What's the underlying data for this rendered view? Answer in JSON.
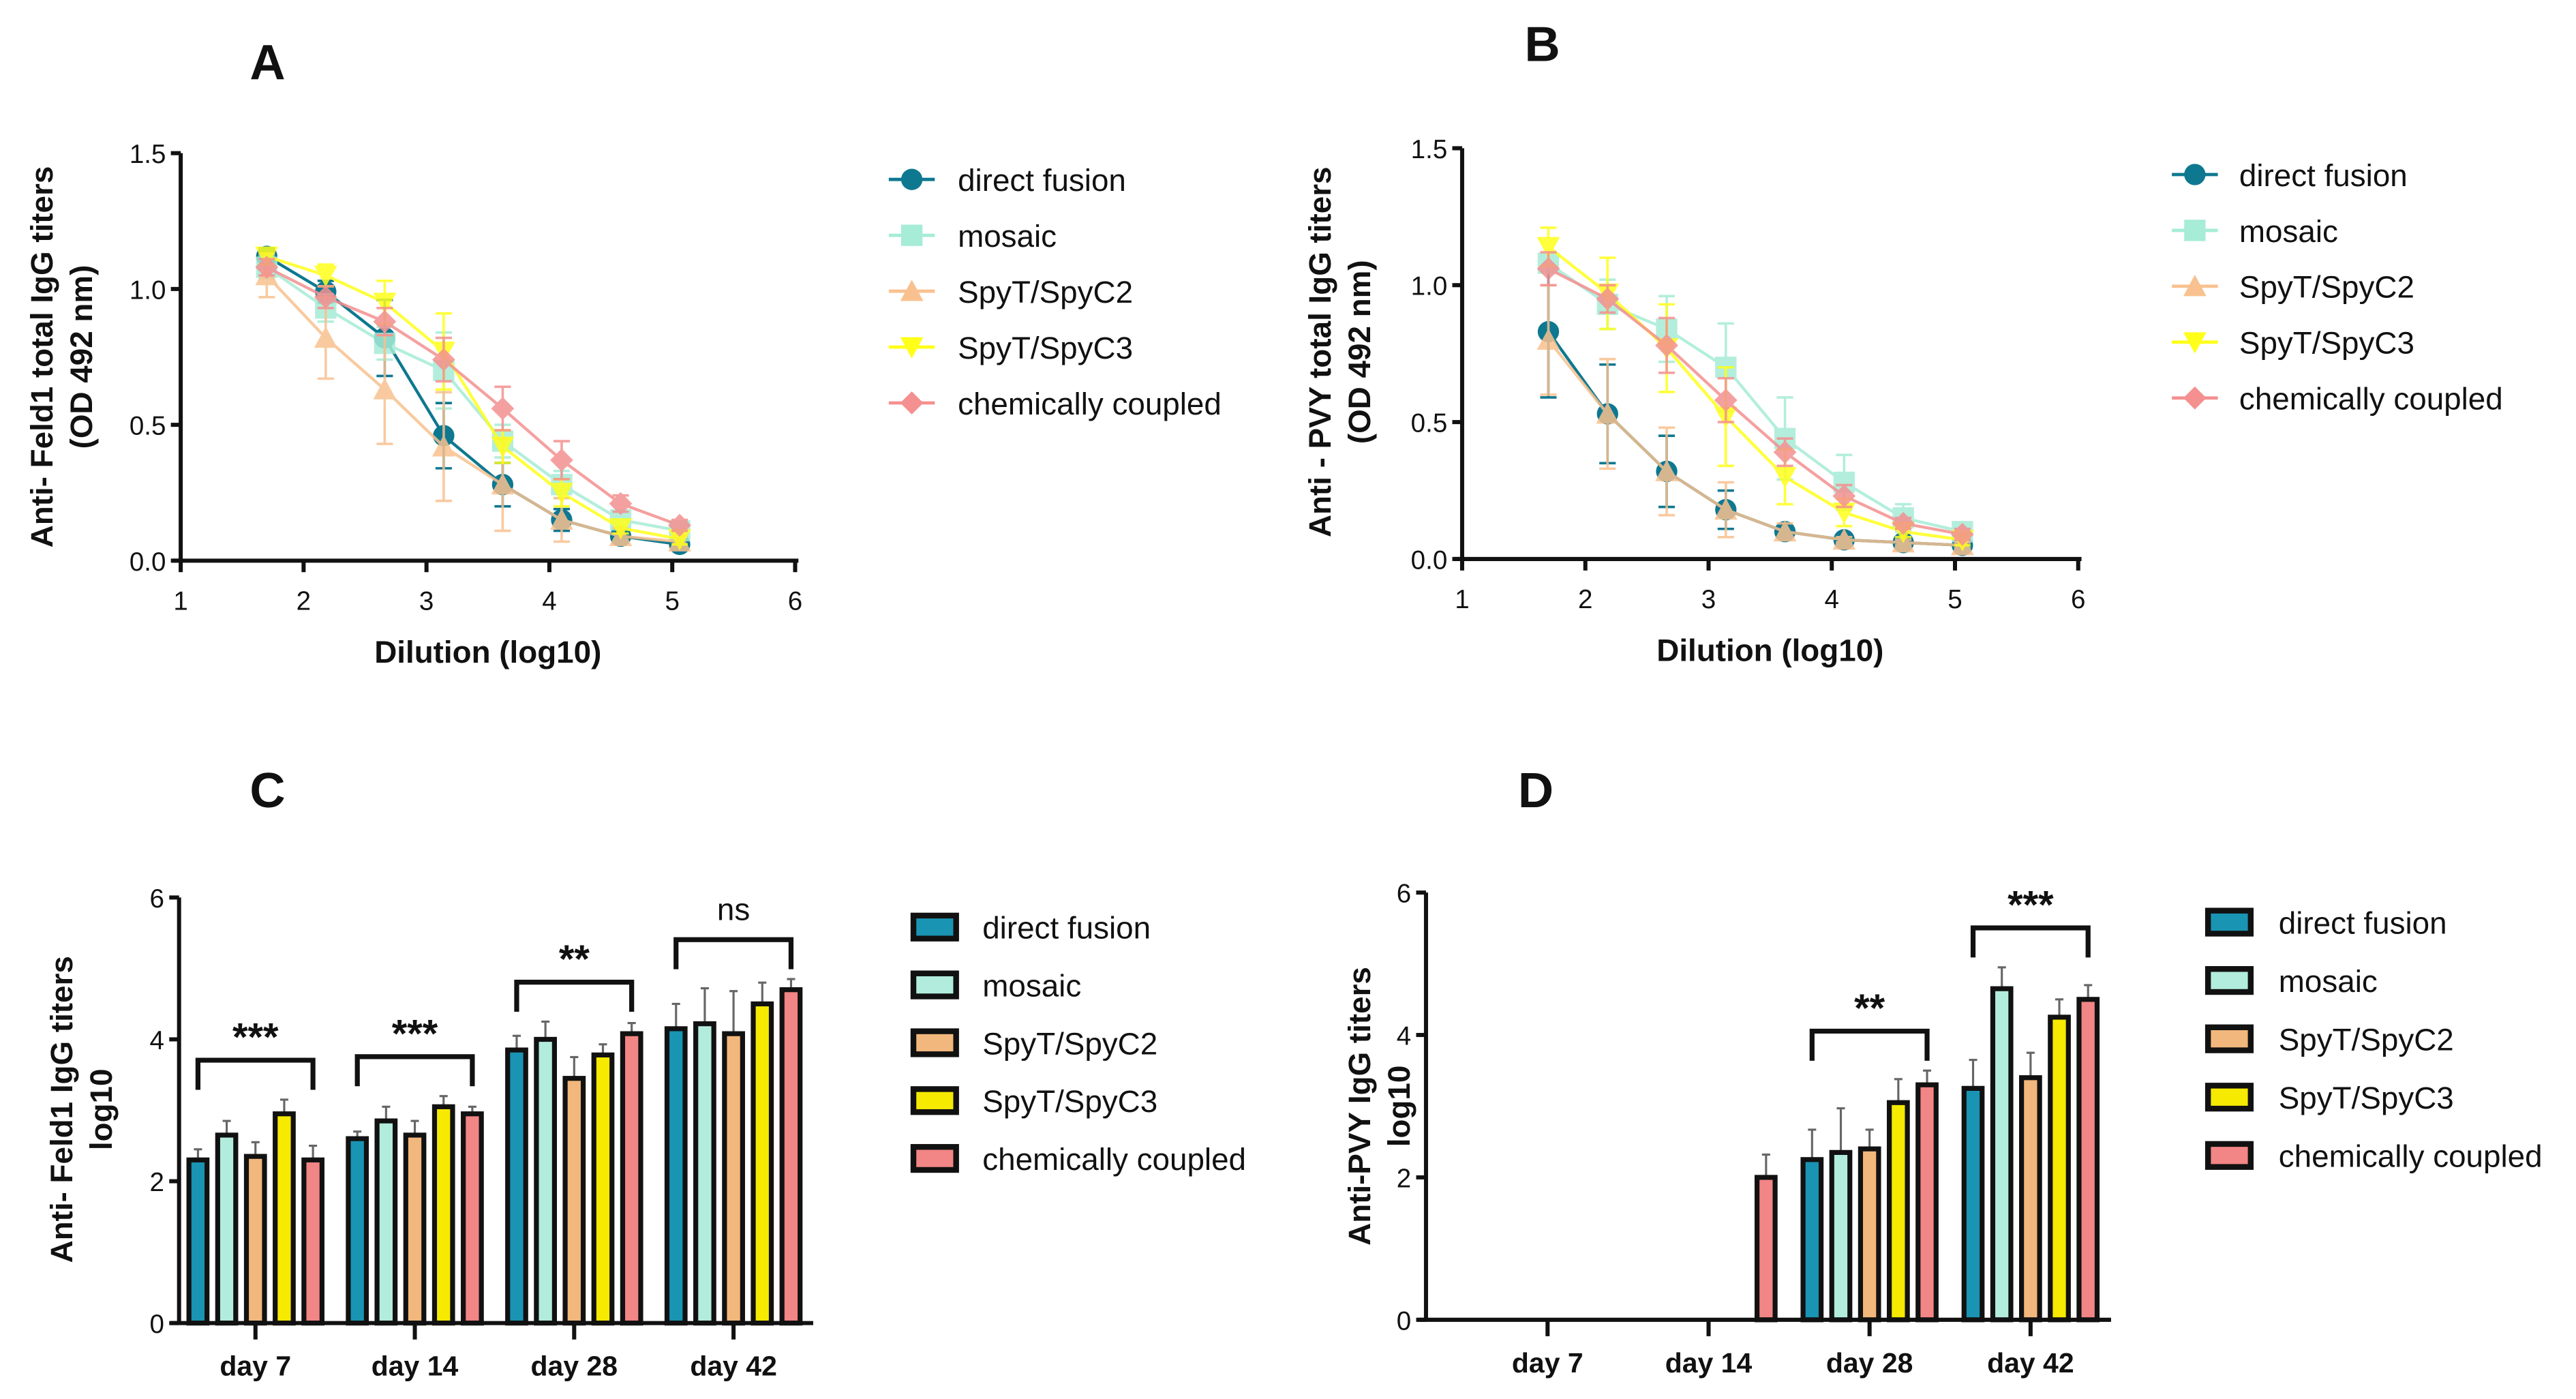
{
  "series_names": [
    "direct fusion",
    "mosaic",
    "SpyT/SpyC2",
    "SpyT/SpyC3",
    "chemically coupled"
  ],
  "colors": {
    "line": [
      "#0e7890",
      "#a6ecd6",
      "#f9c18f",
      "#ffff1a",
      "#f49090"
    ],
    "bar": [
      "#1a94b3",
      "#b2ecdc",
      "#f2b77c",
      "#f5ea00",
      "#f28585"
    ]
  },
  "chart_data": [
    {
      "panel": "A",
      "type": "line",
      "ylabel": [
        "Anti- Feld1 total IgG titers",
        "(OD 492 nm)"
      ],
      "xlabel": "Dilution (log10)",
      "xlim": [
        1,
        6
      ],
      "ylim": [
        0,
        1.5
      ],
      "xticks": [
        "1",
        "2",
        "3",
        "4",
        "5",
        "6"
      ],
      "yticks": [
        "0.0",
        "0.5",
        "1.0",
        "1.5"
      ],
      "x": [
        1.7,
        2.18,
        2.66,
        3.14,
        3.62,
        4.1,
        4.58,
        5.06
      ],
      "series": [
        {
          "name": "direct fusion",
          "values": [
            1.12,
            0.99,
            0.82,
            0.46,
            0.28,
            0.15,
            0.09,
            0.06
          ],
          "err": [
            0.03,
            0.04,
            0.14,
            0.12,
            0.08,
            0.04,
            0.02,
            0.02
          ]
        },
        {
          "name": "mosaic",
          "values": [
            1.08,
            0.93,
            0.8,
            0.7,
            0.44,
            0.28,
            0.15,
            0.11
          ],
          "err": [
            0.04,
            0.05,
            0.06,
            0.14,
            0.06,
            0.05,
            0.03,
            0.02
          ]
        },
        {
          "name": "SpyT/SpyC2",
          "values": [
            1.05,
            0.82,
            0.63,
            0.42,
            0.28,
            0.15,
            0.09,
            0.07
          ],
          "err": [
            0.08,
            0.15,
            0.2,
            0.2,
            0.17,
            0.08,
            0.03,
            0.02
          ]
        },
        {
          "name": "SpyT/SpyC3",
          "values": [
            1.12,
            1.05,
            0.95,
            0.77,
            0.42,
            0.25,
            0.12,
            0.08
          ],
          "err": [
            0.03,
            0.04,
            0.08,
            0.14,
            0.06,
            0.05,
            0.02,
            0.02
          ]
        },
        {
          "name": "chemically coupled",
          "values": [
            1.08,
            0.97,
            0.88,
            0.74,
            0.56,
            0.37,
            0.21,
            0.13
          ],
          "err": [
            0.03,
            0.04,
            0.05,
            0.08,
            0.08,
            0.07,
            0.03,
            0.02
          ]
        }
      ]
    },
    {
      "panel": "B",
      "type": "line",
      "ylabel": [
        "Anti - PVY total IgG titers",
        "(OD 492 nm)"
      ],
      "xlabel": "Dilution (log10)",
      "xlim": [
        1,
        6
      ],
      "ylim": [
        0,
        1.5
      ],
      "xticks": [
        "1",
        "2",
        "3",
        "4",
        "5",
        "6"
      ],
      "yticks": [
        "0.0",
        "0.5",
        "1.0",
        "1.5"
      ],
      "x": [
        1.7,
        2.18,
        2.66,
        3.14,
        3.62,
        4.1,
        4.58,
        5.06
      ],
      "series": [
        {
          "name": "direct fusion",
          "values": [
            0.83,
            0.53,
            0.32,
            0.18,
            0.1,
            0.07,
            0.06,
            0.05
          ],
          "err": [
            0.24,
            0.18,
            0.13,
            0.07,
            0.02,
            0.01,
            0.01,
            0.01
          ]
        },
        {
          "name": "mosaic",
          "values": [
            1.08,
            0.93,
            0.84,
            0.7,
            0.44,
            0.28,
            0.15,
            0.1
          ],
          "err": [
            0.03,
            0.09,
            0.12,
            0.16,
            0.15,
            0.1,
            0.05,
            0.02
          ]
        },
        {
          "name": "SpyT/SpyC2",
          "values": [
            0.8,
            0.53,
            0.32,
            0.18,
            0.1,
            0.07,
            0.06,
            0.05
          ],
          "err": [
            0.2,
            0.2,
            0.16,
            0.1,
            0.03,
            0.01,
            0.01,
            0.01
          ]
        },
        {
          "name": "SpyT/SpyC3",
          "values": [
            1.14,
            0.97,
            0.77,
            0.52,
            0.3,
            0.17,
            0.1,
            0.07
          ],
          "err": [
            0.07,
            0.13,
            0.16,
            0.18,
            0.1,
            0.05,
            0.02,
            0.02
          ]
        },
        {
          "name": "chemically coupled",
          "values": [
            1.06,
            0.95,
            0.78,
            0.58,
            0.39,
            0.23,
            0.13,
            0.09
          ],
          "err": [
            0.06,
            0.05,
            0.1,
            0.08,
            0.05,
            0.04,
            0.02,
            0.02
          ]
        }
      ]
    },
    {
      "panel": "C",
      "type": "bar",
      "ylabel": [
        "Anti- Feld1 IgG titers",
        "log10"
      ],
      "xlabel": "",
      "ylim": [
        0,
        6
      ],
      "yticks": [
        "0",
        "2",
        "4",
        "6"
      ],
      "categories": [
        "day 7",
        "day 14",
        "day 28",
        "day 42"
      ],
      "series": [
        {
          "name": "direct fusion",
          "values": [
            2.3,
            2.6,
            3.85,
            4.15
          ],
          "err": [
            0.15,
            0.1,
            0.2,
            0.35
          ]
        },
        {
          "name": "mosaic",
          "values": [
            2.65,
            2.85,
            4.0,
            4.22
          ],
          "err": [
            0.2,
            0.2,
            0.25,
            0.5
          ]
        },
        {
          "name": "SpyT/SpyC2",
          "values": [
            2.35,
            2.65,
            3.45,
            4.08
          ],
          "err": [
            0.2,
            0.2,
            0.3,
            0.6
          ]
        },
        {
          "name": "SpyT/SpyC3",
          "values": [
            2.95,
            3.05,
            3.78,
            4.5
          ],
          "err": [
            0.2,
            0.15,
            0.15,
            0.3
          ]
        },
        {
          "name": "chemically coupled",
          "values": [
            2.3,
            2.95,
            4.08,
            4.7
          ],
          "err": [
            0.2,
            0.1,
            0.15,
            0.15
          ]
        }
      ],
      "annotations": [
        {
          "category": "day 7",
          "text": "***"
        },
        {
          "category": "day 14",
          "text": "***"
        },
        {
          "category": "day 28",
          "text": "**"
        },
        {
          "category": "day 42",
          "text": "ns"
        }
      ]
    },
    {
      "panel": "D",
      "type": "bar",
      "ylabel": [
        "Anti-PVY IgG titers",
        "log10"
      ],
      "xlabel": "",
      "ylim": [
        0,
        6
      ],
      "yticks": [
        "0",
        "2",
        "4",
        "6"
      ],
      "categories": [
        "day 7",
        "day 14",
        "day 28",
        "day 42"
      ],
      "series": [
        {
          "name": "direct fusion",
          "values": [
            0,
            0,
            2.25,
            3.25
          ],
          "err": [
            0,
            0,
            0.42,
            0.4
          ]
        },
        {
          "name": "mosaic",
          "values": [
            0,
            0,
            2.35,
            4.65
          ],
          "err": [
            0,
            0,
            0.62,
            0.3
          ]
        },
        {
          "name": "SpyT/SpyC2",
          "values": [
            0,
            0,
            2.4,
            3.4
          ],
          "err": [
            0,
            0,
            0.27,
            0.35
          ]
        },
        {
          "name": "SpyT/SpyC3",
          "values": [
            0,
            0,
            3.05,
            4.25
          ],
          "err": [
            0,
            0,
            0.33,
            0.25
          ]
        },
        {
          "name": "chemically coupled",
          "values": [
            0,
            2.0,
            3.3,
            4.5
          ],
          "err": [
            0,
            0.32,
            0.2,
            0.2
          ]
        }
      ],
      "annotations": [
        {
          "category": "day 28",
          "text": "**"
        },
        {
          "category": "day 42",
          "text": "***"
        }
      ]
    }
  ]
}
